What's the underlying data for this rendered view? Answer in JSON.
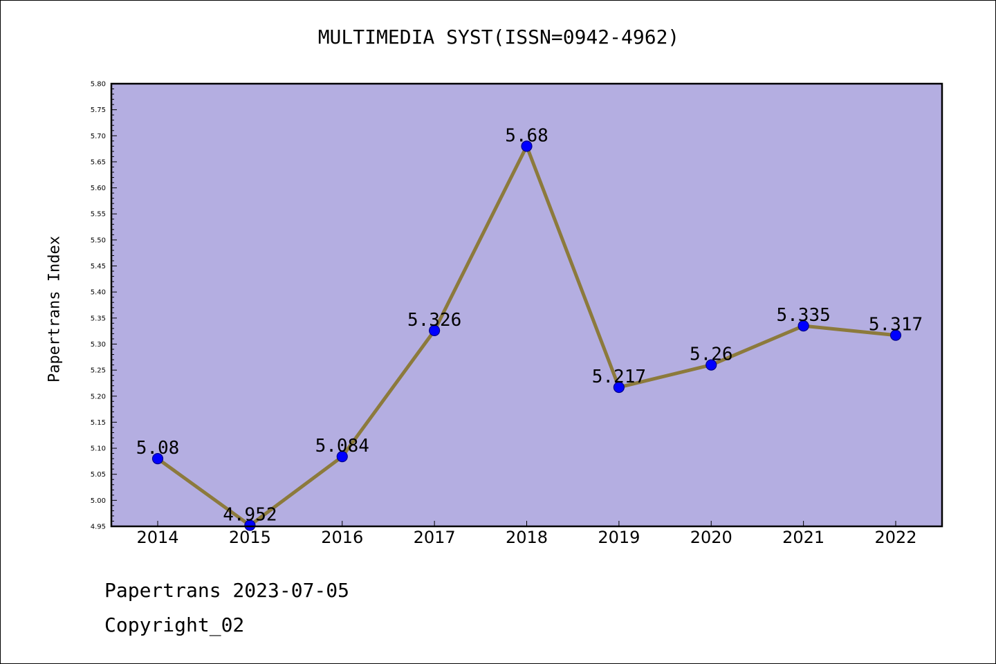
{
  "chart_data": {
    "type": "line",
    "title": "MULTIMEDIA SYST(ISSN=0942-4962)",
    "ylabel": "Papertrans Index",
    "xlabel": "",
    "categories": [
      "2014",
      "2015",
      "2016",
      "2017",
      "2018",
      "2019",
      "2020",
      "2021",
      "2022"
    ],
    "series": [
      {
        "values": [
          5.08,
          4.952,
          5.084,
          5.326,
          5.68,
          5.217,
          5.26,
          5.335,
          5.317
        ],
        "labels": [
          "5.08",
          "4.952",
          "5.084",
          "5.326",
          "5.68",
          "5.217",
          "5.26",
          "5.335",
          "5.317"
        ]
      }
    ],
    "ylim": [
      4.95,
      5.8
    ],
    "yticks": [
      "4.95",
      "5.00",
      "5.05",
      "5.10",
      "5.15",
      "5.20",
      "5.25",
      "5.30",
      "5.35",
      "5.40",
      "5.45",
      "5.50",
      "5.55",
      "5.60",
      "5.65",
      "5.70",
      "5.75",
      "5.80"
    ],
    "grid": false,
    "colors": {
      "plot_background": "#b4aee1",
      "line": "#8c7a3c",
      "marker": "#0000ff"
    }
  },
  "footer": {
    "date_text": "Papertrans 2023-07-05",
    "copyright_text": "Copyright_02"
  }
}
